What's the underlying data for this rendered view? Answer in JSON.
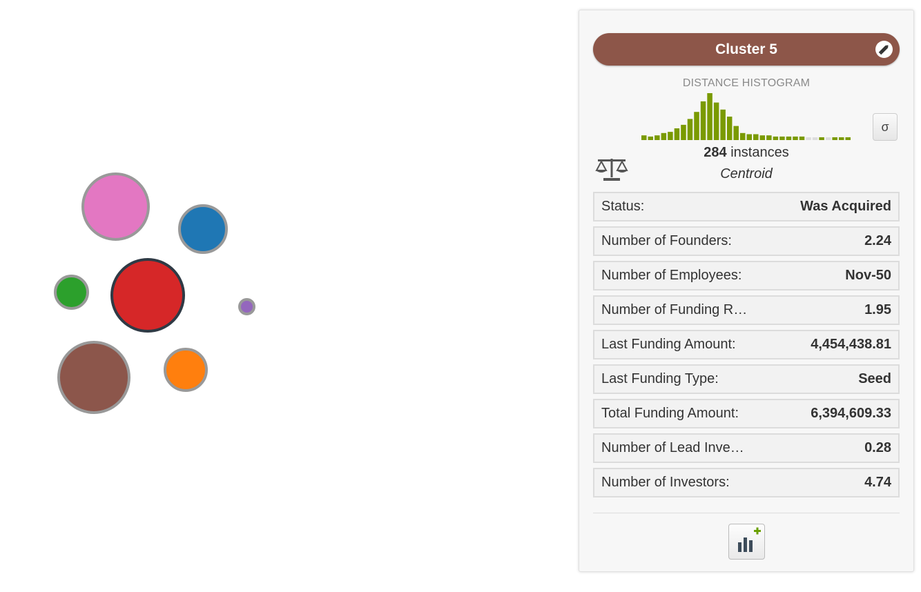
{
  "clusters": [
    {
      "name": "cluster-pink",
      "color": "#e377c2",
      "selected": false
    },
    {
      "name": "cluster-blue",
      "color": "#1f77b4",
      "selected": false
    },
    {
      "name": "cluster-green",
      "color": "#2ca02c",
      "selected": false
    },
    {
      "name": "cluster-red",
      "color": "#d62728",
      "selected": true
    },
    {
      "name": "cluster-purple",
      "color": "#9467bd",
      "selected": false
    },
    {
      "name": "cluster-brown",
      "color": "#8c564b",
      "selected": false
    },
    {
      "name": "cluster-orange",
      "color": "#ff7f0e",
      "selected": false
    }
  ],
  "panel": {
    "title": "Cluster 5",
    "title_color": "#8d5649",
    "histogram_title": "DISTANCE HISTOGRAM",
    "histogram": {
      "bar_color": "#7a9a01",
      "empty_color": "#dddddd",
      "values": [
        2,
        1.5,
        2,
        3,
        3.5,
        5,
        6.5,
        9,
        12,
        16.5,
        20,
        16,
        13,
        10,
        6,
        3,
        2.5,
        2.5,
        2,
        2,
        1.5,
        1.5,
        1.5,
        1.5,
        1.5,
        1,
        1,
        1.2,
        1,
        1.2,
        1.2,
        1.2
      ],
      "empty": [
        false,
        false,
        false,
        false,
        false,
        false,
        false,
        false,
        false,
        false,
        false,
        false,
        false,
        false,
        false,
        false,
        false,
        false,
        false,
        false,
        false,
        false,
        false,
        false,
        false,
        true,
        true,
        false,
        true,
        false,
        false,
        false
      ]
    },
    "sigma_label": "σ",
    "instances_count": "284",
    "instances_label": "instances",
    "centroid_label": "Centroid",
    "scale_icon": "balance-scale-icon",
    "rows": [
      {
        "label": "Status:",
        "value": "Was Acquired"
      },
      {
        "label": "Number of Founders:",
        "value": "2.24"
      },
      {
        "label": "Number of Employees:",
        "value": "Nov-50"
      },
      {
        "label": "Number of Funding R…",
        "value": "1.95"
      },
      {
        "label": "Last Funding Amount:",
        "value": "4,454,438.81"
      },
      {
        "label": "Last Funding Type:",
        "value": "Seed"
      },
      {
        "label": "Total Funding Amount:",
        "value": "6,394,609.33"
      },
      {
        "label": "Number of Lead Inve…",
        "value": "0.28"
      },
      {
        "label": "Number of Investors:",
        "value": "4.74"
      }
    ],
    "chart_button_icon": "add-chart-icon",
    "accent_green": "#6aa000"
  }
}
